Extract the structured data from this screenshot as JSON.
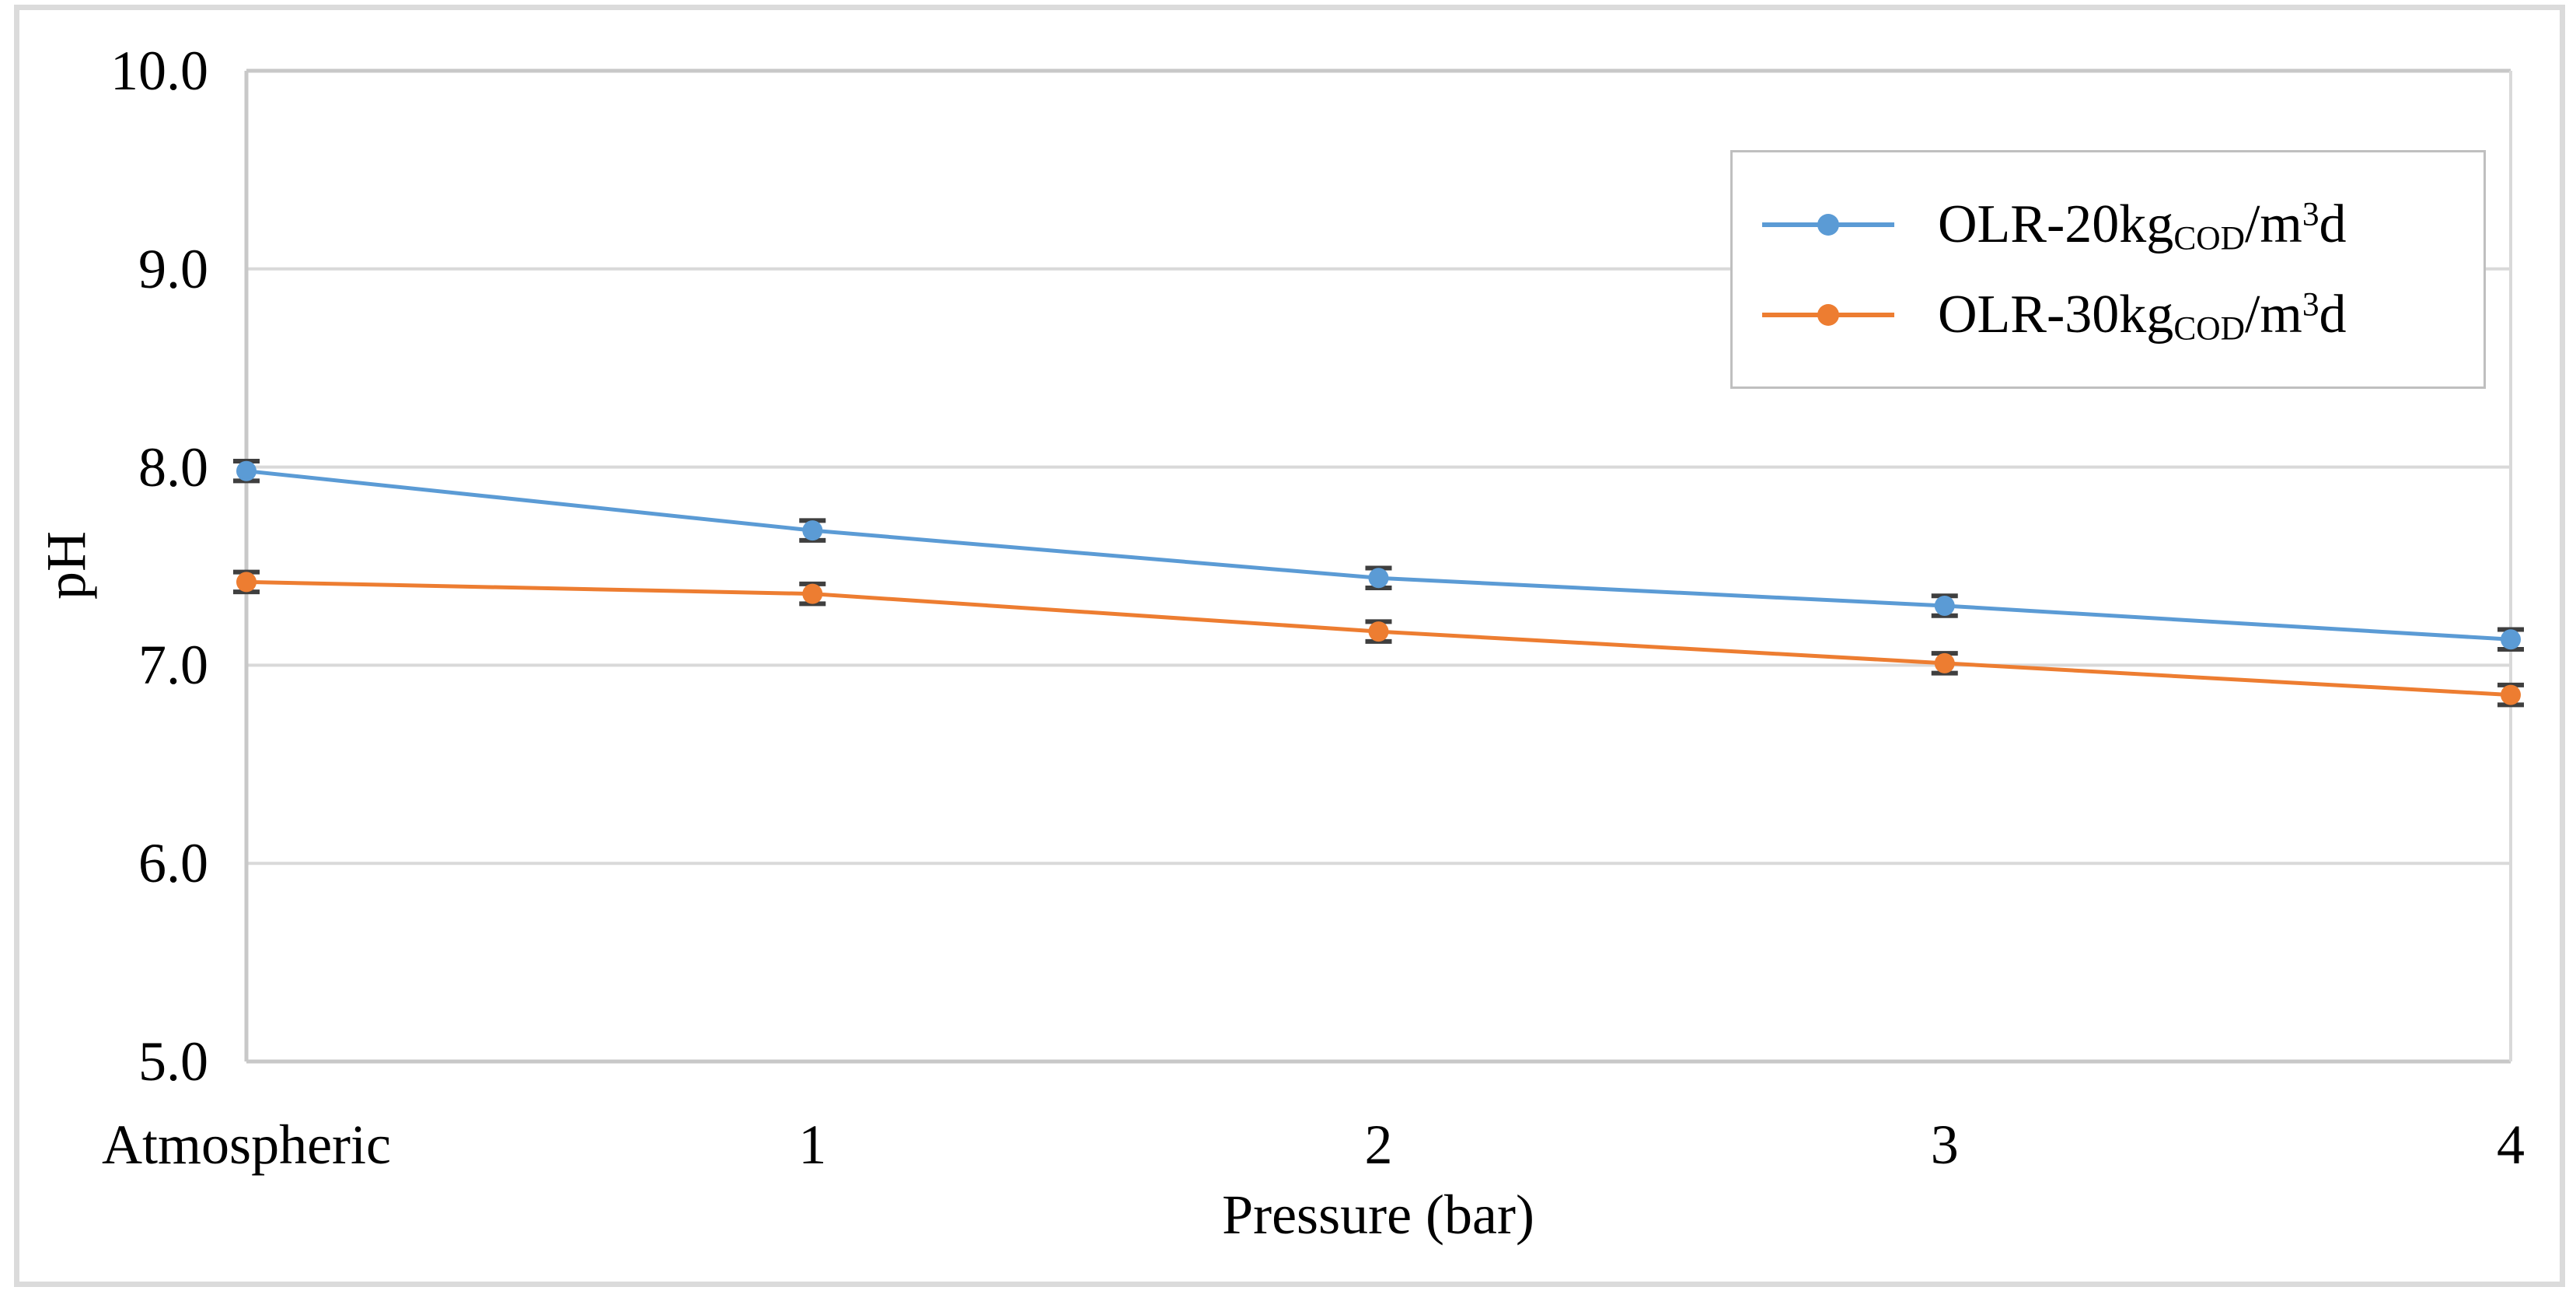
{
  "figure": {
    "background_color": "#FFFFFF",
    "border_color": "#DBDBDB"
  },
  "chart_data": {
    "type": "line",
    "title": "",
    "xlabel": "Pressure (bar)",
    "ylabel": "pH",
    "categories": [
      "Atmospheric",
      "1",
      "2",
      "3",
      "4"
    ],
    "series": [
      {
        "name": "OLR-20kgCOD/m³d",
        "label_parts": {
          "pre": "OLR-20kg",
          "sub": "COD",
          "mid": "/m",
          "sup": "3",
          "post": "d"
        },
        "color": "#5B9BD5",
        "marker": "circle",
        "values": [
          7.98,
          7.68,
          7.44,
          7.3,
          7.13
        ],
        "yerr": [
          0.05,
          0.05,
          0.05,
          0.05,
          0.05
        ]
      },
      {
        "name": "OLR-30kgCOD/m³d",
        "label_parts": {
          "pre": "OLR-30kg",
          "sub": "COD",
          "mid": "/m",
          "sup": "3",
          "post": "d"
        },
        "color": "#ED7D31",
        "marker": "circle",
        "values": [
          7.42,
          7.36,
          7.17,
          7.01,
          6.85
        ],
        "yerr": [
          0.05,
          0.05,
          0.05,
          0.05,
          0.05
        ]
      }
    ],
    "ylim": [
      5.0,
      10.0
    ],
    "ytick_values": [
      10.0,
      9.0,
      8.0,
      7.0,
      6.0,
      5.0
    ],
    "ytick_labels": [
      "10.0",
      "9.0",
      "8.0",
      "7.0",
      "6.0",
      "5.0"
    ],
    "grid": "horizontal",
    "legend_position": "top-right",
    "error_bar_color": "#3F3F3F",
    "gridline_color": "#D9D9D9",
    "plot_border_color": "#C8C8C8"
  }
}
